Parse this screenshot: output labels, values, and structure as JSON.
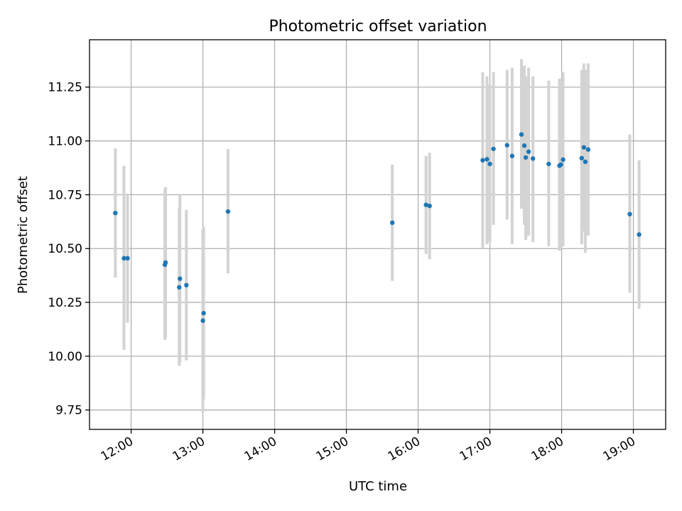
{
  "chart_data": {
    "type": "scatter",
    "title": "Photometric offset variation",
    "xlabel": "UTC time",
    "ylabel": "Photometric offset",
    "x_axis": {
      "kind": "time",
      "unit": "hours UTC",
      "range": [
        11.42,
        19.45
      ],
      "ticks": [
        {
          "value": 12,
          "label": "12:00"
        },
        {
          "value": 13,
          "label": "13:00"
        },
        {
          "value": 14,
          "label": "14:00"
        },
        {
          "value": 15,
          "label": "15:00"
        },
        {
          "value": 16,
          "label": "16:00"
        },
        {
          "value": 17,
          "label": "17:00"
        },
        {
          "value": 18,
          "label": "18:00"
        },
        {
          "value": 19,
          "label": "19:00"
        }
      ]
    },
    "y_axis": {
      "range": [
        9.66,
        11.47
      ],
      "ticks": [
        {
          "value": 9.75,
          "label": "9.75"
        },
        {
          "value": 10.0,
          "label": "10.00"
        },
        {
          "value": 10.25,
          "label": "10.25"
        },
        {
          "value": 10.5,
          "label": "10.50"
        },
        {
          "value": 10.75,
          "label": "10.75"
        },
        {
          "value": 11.0,
          "label": "11.00"
        },
        {
          "value": 11.25,
          "label": "11.25"
        }
      ]
    },
    "grid": true,
    "legend": "none",
    "colors": {
      "point": "#1f77b4",
      "errorbar": "#d3d3d3",
      "grid": "#b0b0b0"
    },
    "points": [
      {
        "x": 11.78,
        "y": 10.665,
        "err_low": 10.365,
        "err_high": 10.965
      },
      {
        "x": 11.9,
        "y": 10.455,
        "err_low": 10.03,
        "err_high": 10.885
      },
      {
        "x": 11.95,
        "y": 10.455,
        "err_low": 10.155,
        "err_high": 10.755
      },
      {
        "x": 12.47,
        "y": 10.425,
        "err_low": 10.075,
        "err_high": 10.775
      },
      {
        "x": 12.48,
        "y": 10.435,
        "err_low": 10.085,
        "err_high": 10.785
      },
      {
        "x": 12.67,
        "y": 10.32,
        "err_low": 9.955,
        "err_high": 10.69
      },
      {
        "x": 12.68,
        "y": 10.36,
        "err_low": 9.97,
        "err_high": 10.75
      },
      {
        "x": 12.77,
        "y": 10.33,
        "err_low": 9.98,
        "err_high": 10.68
      },
      {
        "x": 13.0,
        "y": 10.165,
        "err_low": 9.74,
        "err_high": 10.59
      },
      {
        "x": 13.01,
        "y": 10.2,
        "err_low": 9.8,
        "err_high": 10.6
      },
      {
        "x": 13.35,
        "y": 10.672,
        "err_low": 10.385,
        "err_high": 10.962
      },
      {
        "x": 15.64,
        "y": 10.62,
        "err_low": 10.35,
        "err_high": 10.89
      },
      {
        "x": 16.11,
        "y": 10.703,
        "err_low": 10.475,
        "err_high": 10.93
      },
      {
        "x": 16.16,
        "y": 10.698,
        "err_low": 10.45,
        "err_high": 10.945
      },
      {
        "x": 16.9,
        "y": 10.91,
        "err_low": 10.5,
        "err_high": 11.32
      },
      {
        "x": 16.96,
        "y": 10.915,
        "err_low": 10.52,
        "err_high": 11.3
      },
      {
        "x": 17.0,
        "y": 10.893,
        "err_low": 10.53,
        "err_high": 11.26
      },
      {
        "x": 17.05,
        "y": 10.963,
        "err_low": 10.61,
        "err_high": 11.32
      },
      {
        "x": 17.24,
        "y": 10.98,
        "err_low": 10.635,
        "err_high": 11.33
      },
      {
        "x": 17.31,
        "y": 10.93,
        "err_low": 10.52,
        "err_high": 11.34
      },
      {
        "x": 17.44,
        "y": 11.03,
        "err_low": 10.685,
        "err_high": 11.38
      },
      {
        "x": 17.48,
        "y": 10.978,
        "err_low": 10.61,
        "err_high": 11.35
      },
      {
        "x": 17.5,
        "y": 10.923,
        "err_low": 10.54,
        "err_high": 11.3
      },
      {
        "x": 17.54,
        "y": 10.95,
        "err_low": 10.56,
        "err_high": 11.34
      },
      {
        "x": 17.6,
        "y": 10.918,
        "err_low": 10.53,
        "err_high": 11.3
      },
      {
        "x": 17.82,
        "y": 10.893,
        "err_low": 10.51,
        "err_high": 11.28
      },
      {
        "x": 17.97,
        "y": 10.885,
        "err_low": 10.49,
        "err_high": 11.29
      },
      {
        "x": 17.99,
        "y": 10.89,
        "err_low": 10.5,
        "err_high": 11.28
      },
      {
        "x": 18.02,
        "y": 10.913,
        "err_low": 10.51,
        "err_high": 11.32
      },
      {
        "x": 18.28,
        "y": 10.92,
        "err_low": 10.52,
        "err_high": 11.33
      },
      {
        "x": 18.31,
        "y": 10.97,
        "err_low": 10.58,
        "err_high": 11.36
      },
      {
        "x": 18.33,
        "y": 10.903,
        "err_low": 10.48,
        "err_high": 11.33
      },
      {
        "x": 18.37,
        "y": 10.96,
        "err_low": 10.56,
        "err_high": 11.36
      },
      {
        "x": 18.95,
        "y": 10.66,
        "err_low": 10.295,
        "err_high": 11.03
      },
      {
        "x": 19.08,
        "y": 10.565,
        "err_low": 10.22,
        "err_high": 10.91
      }
    ]
  }
}
